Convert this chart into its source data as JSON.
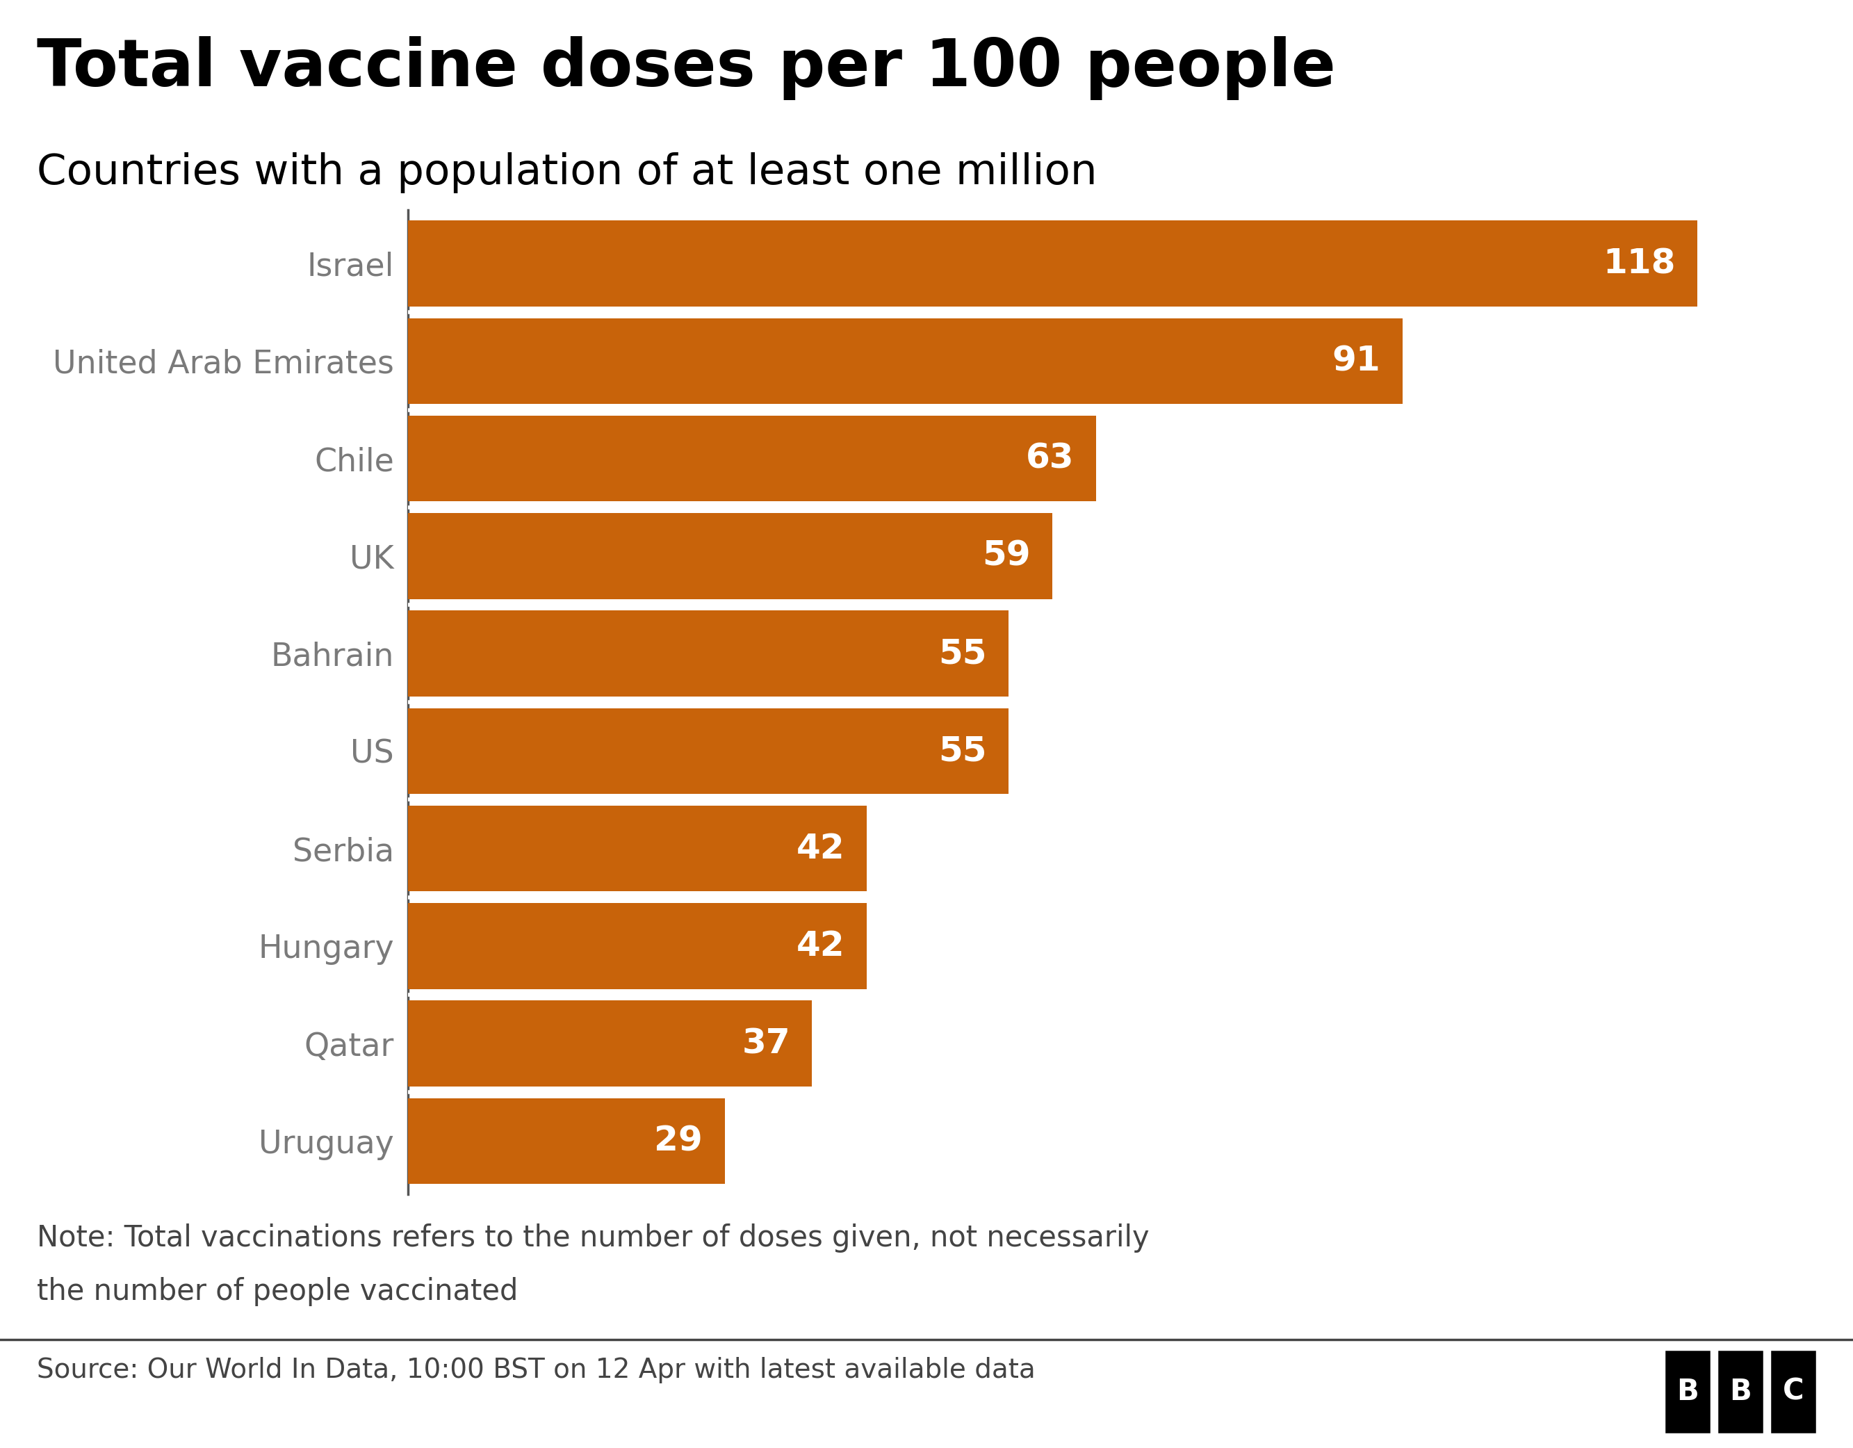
{
  "title": "Total vaccine doses per 100 people",
  "subtitle": "Countries with a population of at least one million",
  "countries": [
    "Israel",
    "United Arab Emirates",
    "Chile",
    "UK",
    "Bahrain",
    "US",
    "Serbia",
    "Hungary",
    "Qatar",
    "Uruguay"
  ],
  "values": [
    118,
    91,
    63,
    59,
    55,
    55,
    42,
    42,
    37,
    29
  ],
  "bar_color": "#C8630A",
  "label_color": "#FFFFFF",
  "country_label_color": "#7a7a7a",
  "title_color": "#000000",
  "subtitle_color": "#000000",
  "background_color": "#FFFFFF",
  "note_line1": "Note: Total vaccinations refers to the number of doses given, not necessarily",
  "note_line2": "the number of people vaccinated",
  "source_text": "Source: Our World In Data, 10:00 BST on 12 Apr with latest available data",
  "bar_gap": 0.12,
  "xlim": [
    0,
    128
  ]
}
